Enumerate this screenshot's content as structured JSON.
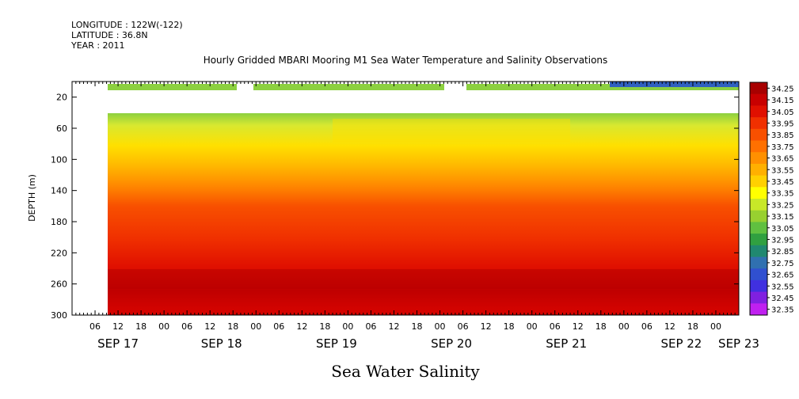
{
  "header": {
    "longitude": "LONGITUDE : 122W(-122)",
    "latitude": "LATITUDE : 36.8N",
    "year": "YEAR : 2011"
  },
  "chart_data": {
    "type": "heatmap",
    "title": "Hourly Gridded MBARI Mooring M1 Sea Water Temperature and Salinity Observations",
    "xlabel": "Sea Water Salinity",
    "ylabel": "DEPTH (m)",
    "ylim": [
      300,
      0
    ],
    "y_ticks": [
      20,
      60,
      100,
      140,
      180,
      220,
      260,
      300
    ],
    "x_range_hours": [
      0,
      174
    ],
    "x_hour_ticks": [
      "06",
      "12",
      "18",
      "00",
      "06",
      "12",
      "18",
      "00",
      "06",
      "12",
      "18",
      "00",
      "06",
      "12",
      "18",
      "00",
      "06",
      "12",
      "18",
      "00",
      "06",
      "12",
      "18",
      "00",
      "06",
      "12",
      "18",
      "00"
    ],
    "x_day_labels": [
      "SEP 17",
      "SEP 18",
      "SEP 19",
      "SEP 20",
      "SEP 21",
      "SEP 22",
      "SEP 23"
    ],
    "x_day_hours": [
      12,
      39,
      69,
      99,
      129,
      159,
      174
    ],
    "colorbar": {
      "levels": [
        "34.25",
        "34.15",
        "34.05",
        "33.95",
        "33.85",
        "33.75",
        "33.65",
        "33.55",
        "33.45",
        "33.35",
        "33.25",
        "33.15",
        "33.05",
        "32.95",
        "32.85",
        "32.75",
        "32.65",
        "32.55",
        "32.45",
        "32.35"
      ],
      "colors": [
        "#a80000",
        "#c80000",
        "#e01000",
        "#f03000",
        "#f85000",
        "#ff7000",
        "#ff9000",
        "#ffb000",
        "#ffd000",
        "#ffff00",
        "#c8e828",
        "#98d030",
        "#60c040",
        "#30a040",
        "#208870",
        "#3070b0",
        "#3050d0",
        "#4030e0",
        "#8020e0",
        "#c020f0"
      ]
    },
    "depth_profile": [
      {
        "depth": 10,
        "value": 33.2
      },
      {
        "depth": 40,
        "value": 33.3
      },
      {
        "depth": 60,
        "value": 33.55
      },
      {
        "depth": 80,
        "value": 33.7
      },
      {
        "depth": 100,
        "value": 33.8
      },
      {
        "depth": 120,
        "value": 33.9
      },
      {
        "depth": 140,
        "value": 34.0
      },
      {
        "depth": 180,
        "value": 34.05
      },
      {
        "depth": 220,
        "value": 34.1
      },
      {
        "depth": 260,
        "value": 34.2
      },
      {
        "depth": 300,
        "value": 34.15
      }
    ],
    "data_gaps": [
      {
        "description": "no data before",
        "hours": [
          0,
          10
        ]
      },
      {
        "description": "surface gap",
        "hours": [
          45,
          50
        ]
      },
      {
        "description": "surface gap",
        "hours": [
          100,
          106
        ]
      }
    ]
  }
}
